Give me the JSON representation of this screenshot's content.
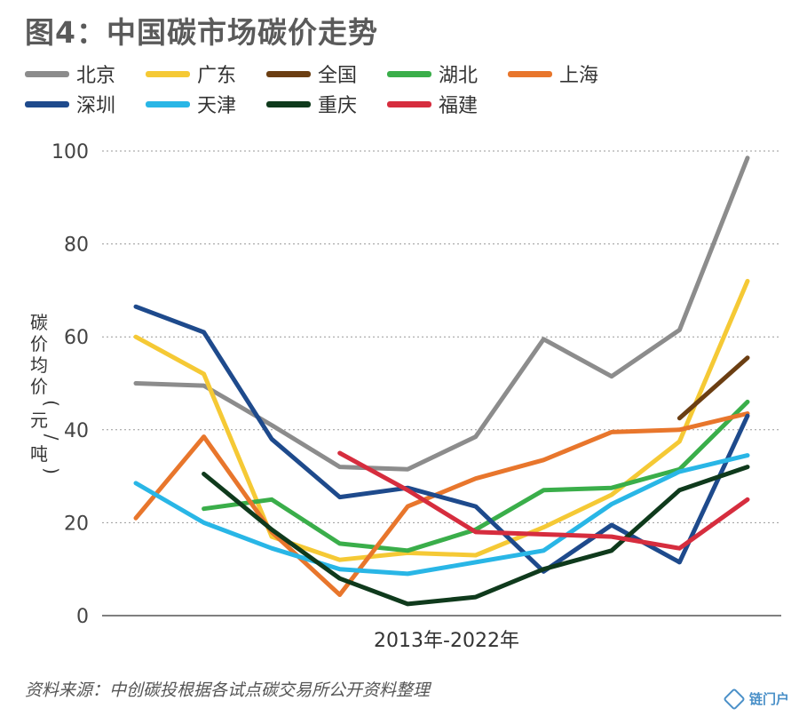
{
  "title": "图4：中国碳市场碳价走势",
  "source": "资料来源：中创碳投根据各试点碳交易所公开资料整理",
  "watermark": "链门户",
  "chart_data": {
    "type": "line",
    "title": "图4：中国碳市场碳价走势",
    "xlabel": "2013年-2022年",
    "ylabel": "碳价均价(元/吨)",
    "ylim": [
      0,
      100
    ],
    "yticks": [
      0,
      20,
      40,
      60,
      80,
      100
    ],
    "grid": true,
    "legend_position": "top",
    "x": [
      2013,
      2014,
      2015,
      2016,
      2017,
      2018,
      2019,
      2020,
      2021,
      2022
    ],
    "series": [
      {
        "name": "北京",
        "color": "#8c8c8c",
        "values": [
          50,
          49.5,
          41,
          32,
          31.5,
          38.5,
          59.5,
          51.5,
          61.5,
          98.5
        ]
      },
      {
        "name": "广东",
        "color": "#f5c935",
        "values": [
          60,
          52,
          17,
          12,
          13.5,
          13,
          19,
          26,
          37.5,
          72
        ]
      },
      {
        "name": "全国",
        "color": "#6b3e12",
        "values": [
          null,
          null,
          null,
          null,
          null,
          null,
          null,
          null,
          42.5,
          55.5
        ]
      },
      {
        "name": "湖北",
        "color": "#3aae4a",
        "values": [
          null,
          23,
          25,
          15.5,
          14,
          18.5,
          27,
          27.5,
          31.5,
          46
        ]
      },
      {
        "name": "上海",
        "color": "#e8762c",
        "values": [
          21,
          38.5,
          18,
          4.5,
          23.5,
          29.5,
          33.5,
          39.5,
          40,
          43.5
        ]
      },
      {
        "name": "深圳",
        "color": "#1e4a8c",
        "values": [
          66.5,
          61,
          38,
          25.5,
          27.5,
          23.5,
          9.5,
          19.5,
          11.5,
          43
        ]
      },
      {
        "name": "天津",
        "color": "#29b6e6",
        "values": [
          28.5,
          20,
          14.5,
          10,
          9,
          11.5,
          14,
          24,
          31,
          34.5
        ]
      },
      {
        "name": "重庆",
        "color": "#0f3a1c",
        "values": [
          null,
          30.5,
          18.5,
          8,
          2.5,
          4,
          10,
          14,
          27,
          32
        ]
      },
      {
        "name": "福建",
        "color": "#d62d3e",
        "values": [
          null,
          null,
          null,
          35,
          27,
          18,
          17.5,
          17,
          14.5,
          25
        ]
      }
    ]
  }
}
